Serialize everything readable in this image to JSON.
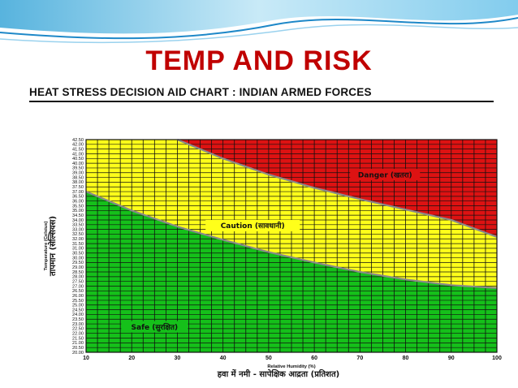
{
  "slide": {
    "title": "TEMP AND RISK"
  },
  "chart_data": {
    "type": "area",
    "title": "HEAT STRESS DECISION AID CHART : INDIAN ARMED FORCES",
    "xlabel": "Relative Humidity (%)",
    "xlabel_hindi": "हवा में नमी - सापेक्षिक आद्रता (प्रतिशत)",
    "ylabel": "Temperature (Celsius)",
    "ylabel_hindi": "तापमान (सेल्सियस)",
    "xlim": [
      10,
      100
    ],
    "ylim": [
      20,
      42.5
    ],
    "x_ticks": [
      10,
      20,
      30,
      40,
      50,
      60,
      70,
      80,
      90,
      100
    ],
    "y_tick_step": 0.5,
    "grid": true,
    "colors": {
      "safe": "#15c01a",
      "caution": "#ffff1a",
      "danger": "#dd1212",
      "boundary": "#8a8a8a"
    },
    "series": [
      {
        "name": "Safe (सुरक्षित)",
        "type": "boundary",
        "x": [
          10,
          20,
          30,
          40,
          50,
          60,
          70,
          80,
          90,
          100
        ],
        "y": [
          37.0,
          35.0,
          33.3,
          31.9,
          30.6,
          29.5,
          28.5,
          27.7,
          27.1,
          26.8
        ]
      },
      {
        "name": "Caution (सावधानी)",
        "type": "boundary",
        "x": [
          30,
          40,
          50,
          60,
          70,
          80,
          90,
          100
        ],
        "y": [
          42.5,
          40.5,
          38.8,
          37.4,
          36.2,
          35.1,
          34.0,
          32.2
        ]
      },
      {
        "name": "Danger (खतरा)"
      }
    ]
  }
}
